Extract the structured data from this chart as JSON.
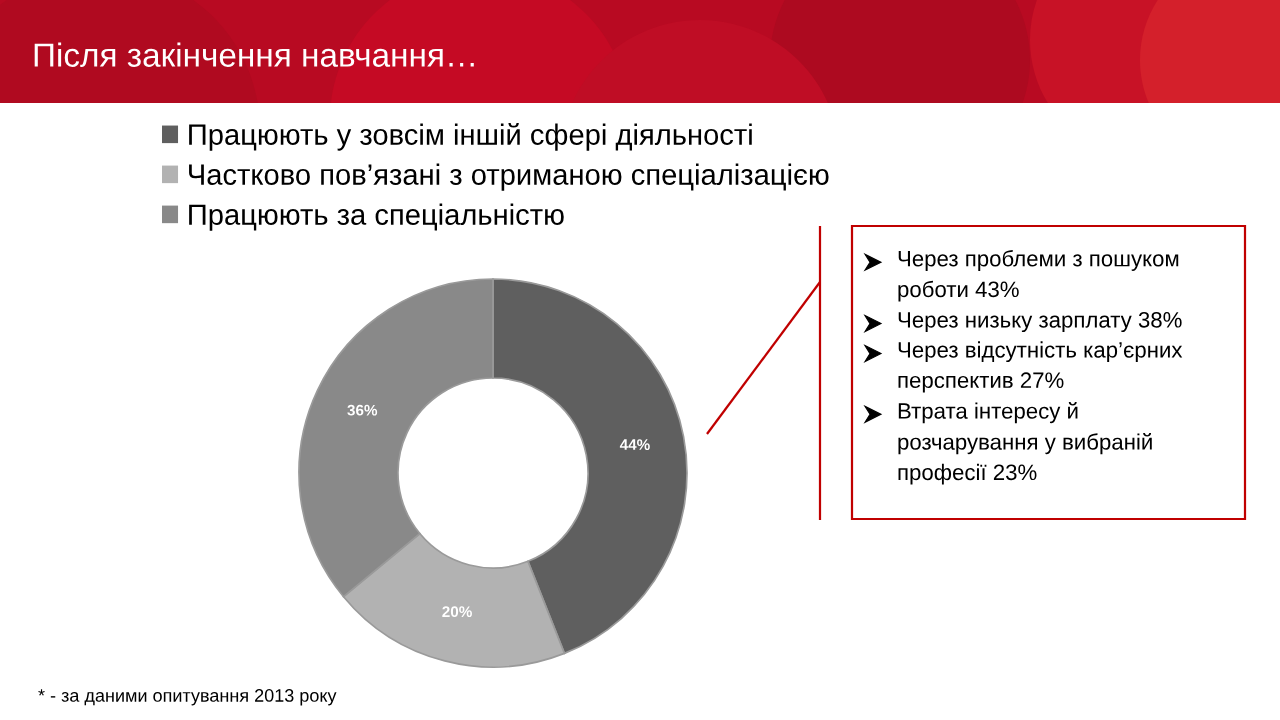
{
  "chart_data": {
    "type": "donut",
    "title": "Після закінчення навчання…",
    "categories": [
      "Працюють у зовсім іншій сфері діяльності",
      "Частково пов’язані з отриманою спеціалізацією",
      "Працюють за спеціальністю"
    ],
    "values": [
      44,
      20,
      36
    ],
    "colors": [
      "#5f5f5f",
      "#b2b2b2",
      "#898989"
    ],
    "value_labels": [
      "44%",
      "20%",
      "36%"
    ],
    "legend": "top",
    "annotations": [
      "Через проблеми з пошуком\nроботи 43%",
      "Через низьку зарплату 38%",
      "Через відсутність кар’єрних\nперспектив 27%",
      "Втрата інтересу й\nрозчарування у вибраній\nпрофесії 23%",
      "* - за даними опитування 2013 року"
    ]
  }
}
